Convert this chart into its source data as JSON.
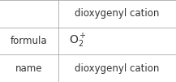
{
  "col_labels": [
    "",
    "dioxygenyl cation"
  ],
  "rows": [
    [
      "formula",
      "formula_special"
    ],
    [
      "name",
      "dioxygenyl cation"
    ]
  ],
  "background_color": "#ffffff",
  "border_color": "#aaaaaa",
  "text_color": "#333333",
  "font_size": 8.5,
  "formula_fontsize": 9,
  "col_split": 0.33,
  "figsize": [
    2.17,
    1.01
  ],
  "dpi": 100
}
